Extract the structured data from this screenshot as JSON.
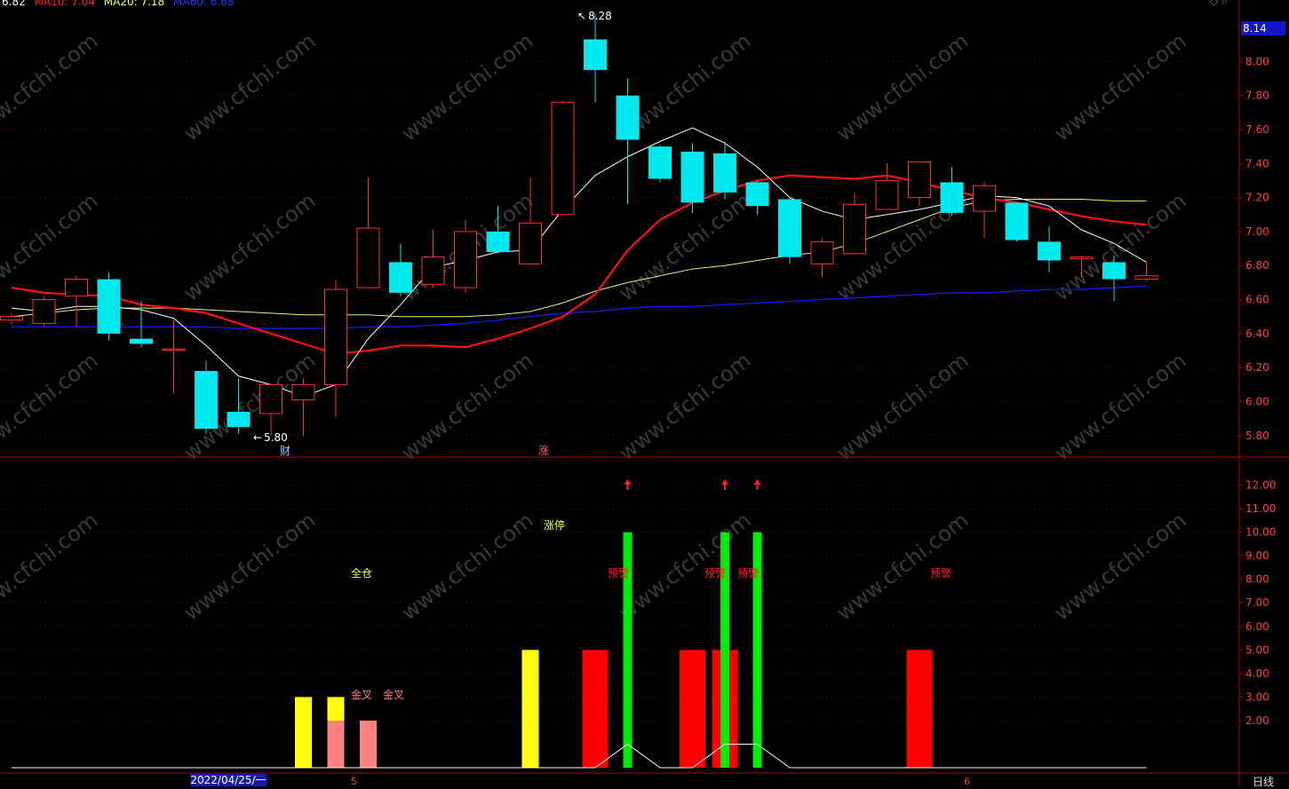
{
  "header": {
    "values": [
      {
        "text": "6.82",
        "color": "#ffffff"
      },
      {
        "text": "MA10: 7.04",
        "color": "#ff2020"
      },
      {
        "text": "MA20: 7.18",
        "color": "#ffff40"
      },
      {
        "text": "MA60: 6.68",
        "color": "#2020ff"
      }
    ],
    "nav_icons": "◇ ⌕"
  },
  "price_axis": {
    "current_price": "8.14",
    "ticks": [
      "8.00",
      "7.80",
      "7.60",
      "7.40",
      "7.20",
      "7.00",
      "6.80",
      "6.60",
      "6.40",
      "6.20",
      "6.00",
      "5.80"
    ]
  },
  "indicator_axis": {
    "ticks": [
      "12.00",
      "11.00",
      "10.00",
      "9.00",
      "8.00",
      "7.00",
      "6.00",
      "5.00",
      "4.00",
      "3.00",
      "2.00"
    ]
  },
  "annotations": {
    "high": "8.28",
    "low": "5.80",
    "event_cai": "财",
    "event_zhang": "涨"
  },
  "indicator_labels": {
    "quancang": "全仓",
    "zhangting": "涨停",
    "jincha": "金叉",
    "yujing": "预警"
  },
  "time_axis": {
    "date": "2022/04/25/一",
    "month_5": "5",
    "month_6": "6",
    "period": "日线"
  },
  "watermark": "www.cfchi.com",
  "colors": {
    "up": "#ff3030",
    "down": "#00e8f0",
    "ma5": "#ffffff",
    "ma10": "#ff1010",
    "ma20": "#f0f060",
    "ma60": "#1a1aff",
    "grid": "#6a0000",
    "axis": "#b00000",
    "tick_text": "#ff4040",
    "bar_red": "#ff0000",
    "bar_yellow": "#ffff00",
    "bar_pink": "#ff8080",
    "bar_green": "#00ee00"
  },
  "chart_data": {
    "type": "candlestick",
    "candles": [
      {
        "o": 6.48,
        "h": 6.52,
        "l": 6.45,
        "c": 6.5
      },
      {
        "o": 6.46,
        "h": 6.62,
        "l": 6.44,
        "c": 6.6
      },
      {
        "o": 6.62,
        "h": 6.74,
        "l": 6.44,
        "c": 6.72
      },
      {
        "o": 6.72,
        "h": 6.76,
        "l": 6.36,
        "c": 6.4
      },
      {
        "o": 6.37,
        "h": 6.59,
        "l": 6.32,
        "c": 6.34
      },
      {
        "o": 6.31,
        "h": 6.48,
        "l": 6.05,
        "c": 6.31
      },
      {
        "o": 6.18,
        "h": 6.24,
        "l": 5.81,
        "c": 5.84
      },
      {
        "o": 5.94,
        "h": 6.14,
        "l": 5.81,
        "c": 5.85
      },
      {
        "o": 5.93,
        "h": 6.1,
        "l": 5.8,
        "c": 6.1
      },
      {
        "o": 6.01,
        "h": 6.14,
        "l": 5.8,
        "c": 6.1
      },
      {
        "o": 6.1,
        "h": 6.71,
        "l": 5.91,
        "c": 6.66
      },
      {
        "o": 6.67,
        "h": 7.32,
        "l": 6.67,
        "c": 7.02
      },
      {
        "o": 6.82,
        "h": 6.93,
        "l": 6.62,
        "c": 6.64
      },
      {
        "o": 6.69,
        "h": 7.01,
        "l": 6.67,
        "c": 6.85
      },
      {
        "o": 6.67,
        "h": 7.07,
        "l": 6.64,
        "c": 7.0
      },
      {
        "o": 7.0,
        "h": 7.15,
        "l": 6.87,
        "c": 6.88
      },
      {
        "o": 6.81,
        "h": 7.32,
        "l": 6.81,
        "c": 7.05
      },
      {
        "o": 7.1,
        "h": 7.77,
        "l": 7.1,
        "c": 7.76
      },
      {
        "o": 8.13,
        "h": 8.28,
        "l": 7.76,
        "c": 7.95
      },
      {
        "o": 7.8,
        "h": 7.9,
        "l": 7.16,
        "c": 7.54
      },
      {
        "o": 7.5,
        "h": 7.51,
        "l": 7.29,
        "c": 7.31
      },
      {
        "o": 7.47,
        "h": 7.52,
        "l": 7.11,
        "c": 7.17
      },
      {
        "o": 7.46,
        "h": 7.53,
        "l": 7.19,
        "c": 7.23
      },
      {
        "o": 7.29,
        "h": 7.3,
        "l": 7.1,
        "c": 7.15
      },
      {
        "o": 7.19,
        "h": 7.2,
        "l": 6.81,
        "c": 6.85
      },
      {
        "o": 6.81,
        "h": 6.96,
        "l": 6.73,
        "c": 6.94
      },
      {
        "o": 6.87,
        "h": 7.23,
        "l": 6.87,
        "c": 7.16
      },
      {
        "o": 7.13,
        "h": 7.4,
        "l": 7.13,
        "c": 7.3
      },
      {
        "o": 7.2,
        "h": 7.41,
        "l": 7.15,
        "c": 7.41
      },
      {
        "o": 7.29,
        "h": 7.38,
        "l": 7.09,
        "c": 7.11
      },
      {
        "o": 7.12,
        "h": 7.29,
        "l": 6.96,
        "c": 7.27
      },
      {
        "o": 7.17,
        "h": 7.17,
        "l": 6.94,
        "c": 6.95
      },
      {
        "o": 6.94,
        "h": 7.03,
        "l": 6.76,
        "c": 6.83
      },
      {
        "o": 6.84,
        "h": 6.86,
        "l": 6.73,
        "c": 6.85
      },
      {
        "o": 6.82,
        "h": 6.86,
        "l": 6.59,
        "c": 6.72
      },
      {
        "o": 6.72,
        "h": 6.82,
        "l": 6.71,
        "c": 6.74
      }
    ],
    "ma5": [
      6.55,
      6.53,
      6.56,
      6.56,
      6.54,
      6.49,
      6.33,
      6.15,
      6.1,
      6.03,
      6.1,
      6.37,
      6.57,
      6.79,
      6.83,
      6.88,
      6.89,
      7.13,
      7.33,
      7.44,
      7.53,
      7.61,
      7.52,
      7.38,
      7.2,
      7.12,
      7.07,
      7.1,
      7.13,
      7.17,
      7.21,
      7.2,
      7.15,
      7.01,
      6.93,
      6.82
    ],
    "ma10": [
      6.67,
      6.64,
      6.63,
      6.62,
      6.57,
      6.55,
      6.52,
      6.46,
      6.4,
      6.34,
      6.28,
      6.3,
      6.33,
      6.33,
      6.32,
      6.37,
      6.43,
      6.5,
      6.63,
      6.89,
      7.07,
      7.17,
      7.24,
      7.3,
      7.33,
      7.32,
      7.31,
      7.33,
      7.29,
      7.24,
      7.2,
      7.17,
      7.13,
      7.09,
      7.06,
      7.04
    ],
    "ma20": [
      6.5,
      6.52,
      6.54,
      6.55,
      6.55,
      6.55,
      6.54,
      6.53,
      6.52,
      6.51,
      6.51,
      6.51,
      6.5,
      6.5,
      6.5,
      6.51,
      6.53,
      6.58,
      6.65,
      6.7,
      6.74,
      6.78,
      6.8,
      6.83,
      6.86,
      6.88,
      6.93,
      7.0,
      7.07,
      7.14,
      7.18,
      7.19,
      7.19,
      7.19,
      7.18,
      7.18
    ],
    "ma60": [
      6.44,
      6.44,
      6.44,
      6.44,
      6.44,
      6.44,
      6.44,
      6.43,
      6.43,
      6.43,
      6.43,
      6.44,
      6.44,
      6.45,
      6.46,
      6.48,
      6.5,
      6.52,
      6.53,
      6.55,
      6.56,
      6.56,
      6.57,
      6.58,
      6.59,
      6.6,
      6.61,
      6.62,
      6.63,
      6.64,
      6.64,
      6.65,
      6.66,
      6.66,
      6.67,
      6.68
    ],
    "price_range": [
      5.7,
      8.32
    ],
    "indicator_range": [
      0,
      13
    ],
    "indicator": {
      "yellow": [
        {
          "i": 9,
          "v": 3
        },
        {
          "i": 10,
          "v": 3
        },
        {
          "i": 16,
          "v": 5
        }
      ],
      "pink": [
        {
          "i": 10,
          "v": 2
        },
        {
          "i": 11,
          "v": 2
        }
      ],
      "red": [
        {
          "i": 18,
          "v": 5
        },
        {
          "i": 21,
          "v": 5
        },
        {
          "i": 22,
          "v": 5
        },
        {
          "i": 28,
          "v": 5
        }
      ],
      "green": [
        {
          "i": 19,
          "v": 10
        },
        {
          "i": 22,
          "v": 10
        },
        {
          "i": 23,
          "v": 10
        }
      ],
      "line": [
        0,
        0,
        0,
        0,
        0,
        0,
        0,
        0,
        0,
        0,
        0,
        0,
        0,
        0,
        0,
        0,
        0,
        0,
        0,
        1,
        0,
        0,
        1,
        1,
        0,
        0,
        0,
        0,
        0,
        0,
        0,
        0,
        0,
        0,
        0,
        0
      ],
      "arrows": [
        19,
        22,
        23
      ]
    }
  }
}
